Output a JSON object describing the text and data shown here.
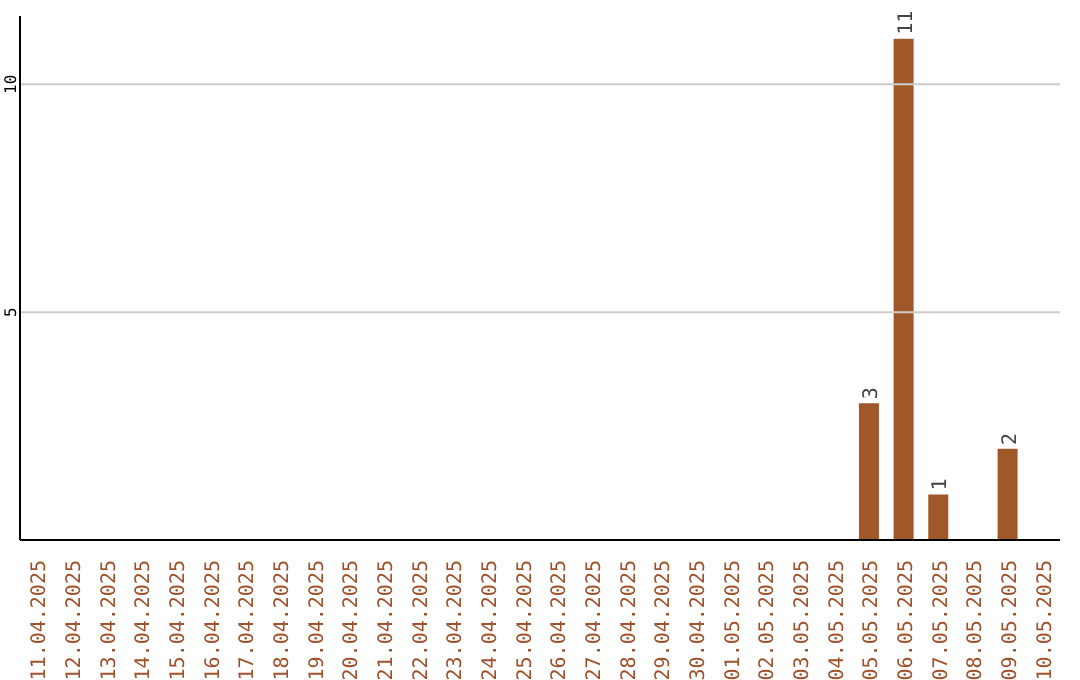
{
  "chart_data": {
    "type": "bar",
    "categories": [
      "11.04.2025",
      "12.04.2025",
      "13.04.2025",
      "14.04.2025",
      "15.04.2025",
      "16.04.2025",
      "17.04.2025",
      "18.04.2025",
      "19.04.2025",
      "20.04.2025",
      "21.04.2025",
      "22.04.2025",
      "23.04.2025",
      "24.04.2025",
      "25.04.2025",
      "26.04.2025",
      "27.04.2025",
      "28.04.2025",
      "29.04.2025",
      "30.04.2025",
      "01.05.2025",
      "02.05.2025",
      "03.05.2025",
      "04.05.2025",
      "05.05.2025",
      "06.05.2025",
      "07.05.2025",
      "08.05.2025",
      "09.05.2025",
      "10.05.2025"
    ],
    "values": [
      0,
      0,
      0,
      0,
      0,
      0,
      0,
      0,
      0,
      0,
      0,
      0,
      0,
      0,
      0,
      0,
      0,
      0,
      0,
      0,
      0,
      0,
      0,
      0,
      3,
      11,
      1,
      0,
      2,
      0
    ],
    "value_labels": [
      null,
      null,
      null,
      null,
      null,
      null,
      null,
      null,
      null,
      null,
      null,
      null,
      null,
      null,
      null,
      null,
      null,
      null,
      null,
      null,
      null,
      null,
      null,
      null,
      "3",
      "11",
      "1",
      null,
      "2",
      null
    ],
    "color": "#a0582a",
    "ylim": [
      0,
      11.5
    ],
    "yticks": [
      5,
      10
    ],
    "grid": "y"
  }
}
